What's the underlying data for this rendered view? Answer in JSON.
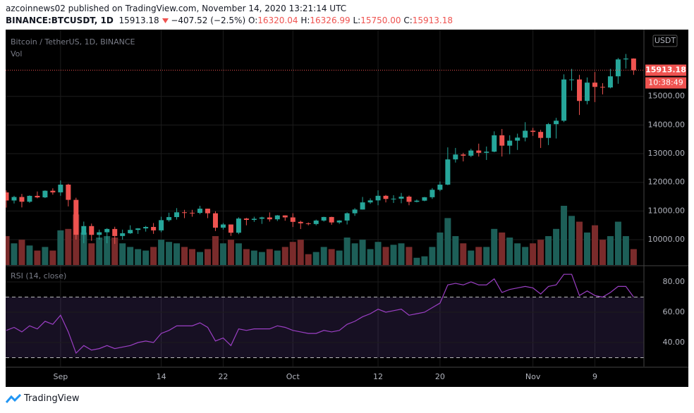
{
  "header": {
    "author_line": "azcoinnews02 published on TradingView.com, November 14, 2020 13:21:14 UTC",
    "symbol": "BINANCE:BTCUSDT, 1D",
    "last": "15913.18",
    "change": "−407.52 (−2.5%)",
    "ohlc": [
      {
        "label": "O:",
        "value": "16320.04"
      },
      {
        "label": "H:",
        "value": "16326.99"
      },
      {
        "label": "L:",
        "value": "15750.00"
      },
      {
        "label": "C:",
        "value": "15913.18"
      }
    ]
  },
  "footer": {
    "brand": "TradingView"
  },
  "chart_data": [
    {
      "type": "candlestick",
      "title": "Bitcoin / TetherUS, 1D, BINANCE",
      "volume_label": "Vol",
      "unit": "USDT",
      "last_label": "15913.18",
      "countdown": "10:38:49",
      "categories": [
        null,
        null,
        null,
        null,
        null,
        null,
        null,
        "Sep",
        null,
        null,
        null,
        null,
        null,
        null,
        null,
        null,
        null,
        null,
        null,
        null,
        "14",
        null,
        null,
        null,
        null,
        null,
        null,
        null,
        "22",
        null,
        null,
        null,
        null,
        null,
        null,
        null,
        null,
        "Oct",
        null,
        null,
        null,
        null,
        null,
        null,
        null,
        null,
        null,
        null,
        "12",
        null,
        null,
        null,
        null,
        null,
        null,
        null,
        "20",
        null,
        null,
        null,
        null,
        null,
        null,
        null,
        null,
        null,
        null,
        null,
        "Nov",
        null,
        null,
        null,
        null,
        null,
        null,
        null,
        "9",
        null,
        null,
        null,
        null,
        null
      ],
      "open": [
        11648,
        11366,
        11488,
        11323,
        11528,
        11475,
        11706,
        11650,
        11920,
        11388,
        10170,
        10473,
        10166,
        10257,
        10372,
        10126,
        10223,
        10339,
        10392,
        10443,
        10323,
        10680,
        10787,
        10954,
        10939,
        10933,
        11080,
        10920,
        10417,
        10529,
        10241,
        10736,
        10689,
        10728,
        10775,
        10709,
        10845,
        10776,
        10620,
        10570,
        10545,
        10666,
        10790,
        10600,
        10667,
        10920,
        11050,
        11300,
        11370,
        11530,
        11420,
        11430,
        11500,
        11320,
        11360,
        11480,
        11740,
        11920,
        12800,
        12970,
        12930,
        13110,
        13030,
        13070,
        13640,
        13280,
        13455,
        13560,
        13800,
        13760,
        13550,
        14030,
        14150,
        15590,
        15590,
        14840,
        15480,
        15330,
        15310,
        15700,
        16290,
        16320.04
      ],
      "high": [
        11718,
        11530,
        11595,
        11545,
        11680,
        11720,
        11790,
        12067,
        11950,
        11462,
        10630,
        10560,
        10350,
        10400,
        10450,
        10350,
        10500,
        10400,
        10480,
        10580,
        10800,
        10940,
        11100,
        11040,
        11040,
        11180,
        11080,
        10990,
        10580,
        10530,
        10780,
        10760,
        10800,
        10800,
        10950,
        10860,
        10850,
        10920,
        10660,
        10600,
        10700,
        10800,
        10800,
        10680,
        10950,
        11100,
        11490,
        11440,
        11720,
        11560,
        11550,
        11630,
        11540,
        11400,
        11490,
        11800,
        12030,
        13220,
        13200,
        13030,
        13170,
        13350,
        13250,
        13780,
        13860,
        13640,
        13700,
        14100,
        13900,
        13830,
        14070,
        14250,
        15770,
        15960,
        15750,
        15660,
        15850,
        15460,
        15960,
        16340,
        16480,
        16326.99
      ],
      "low": [
        11117,
        11262,
        11125,
        11285,
        11442,
        11450,
        11570,
        11530,
        11160,
        10000,
        9875,
        9960,
        10000,
        9875,
        9850,
        10000,
        10200,
        10200,
        10280,
        10200,
        10260,
        10630,
        10700,
        10750,
        10800,
        10890,
        10750,
        10300,
        10350,
        10130,
        10190,
        10500,
        10620,
        10550,
        10630,
        10650,
        10660,
        10440,
        10370,
        10500,
        10500,
        10630,
        10520,
        10550,
        10530,
        10830,
        11050,
        11250,
        11200,
        11300,
        11280,
        11270,
        11200,
        11300,
        11340,
        11420,
        11690,
        11900,
        12690,
        12730,
        12880,
        12900,
        12780,
        13050,
        12900,
        12980,
        13130,
        13430,
        13620,
        13200,
        13300,
        13530,
        14100,
        15200,
        14350,
        14720,
        14800,
        15070,
        15280,
        15440,
        15970,
        15750
      ],
      "close": [
        11366,
        11488,
        11323,
        11528,
        11475,
        11706,
        11650,
        11920,
        11388,
        10170,
        10473,
        10166,
        10257,
        10372,
        10126,
        10223,
        10339,
        10392,
        10443,
        10323,
        10680,
        10787,
        10954,
        10939,
        10933,
        11080,
        10920,
        10417,
        10529,
        10241,
        10736,
        10689,
        10728,
        10775,
        10709,
        10845,
        10776,
        10620,
        10570,
        10545,
        10666,
        10790,
        10600,
        10667,
        10920,
        11050,
        11300,
        11370,
        11530,
        11420,
        11430,
        11500,
        11320,
        11360,
        11480,
        11740,
        11920,
        12800,
        12970,
        12930,
        13110,
        13030,
        13070,
        13640,
        13280,
        13455,
        13560,
        13800,
        13760,
        13550,
        14030,
        14150,
        15590,
        15590,
        14840,
        15480,
        15330,
        15310,
        15700,
        16290,
        16320,
        15913.18
      ],
      "volume": [
        40,
        30,
        35,
        27,
        20,
        25,
        20,
        48,
        50,
        70,
        45,
        30,
        38,
        40,
        38,
        30,
        25,
        22,
        20,
        25,
        35,
        32,
        30,
        25,
        22,
        18,
        22,
        40,
        30,
        35,
        30,
        22,
        20,
        18,
        22,
        20,
        25,
        32,
        35,
        15,
        18,
        25,
        22,
        20,
        38,
        30,
        35,
        22,
        32,
        25,
        28,
        30,
        25,
        10,
        12,
        25,
        45,
        65,
        40,
        30,
        20,
        25,
        25,
        50,
        45,
        38,
        30,
        25,
        30,
        35,
        40,
        50,
        82,
        68,
        60,
        45,
        55,
        35,
        40,
        60,
        40,
        22
      ],
      "up_color": "#26a69a",
      "down_color": "#ef5350",
      "volume_up_color": "#1d5f58",
      "volume_down_color": "#7a2b2b",
      "ylim": [
        9115,
        17330
      ],
      "yticks": [
        {
          "value": 10000,
          "label": "10000.00"
        },
        {
          "value": 11000,
          "label": "11000.00"
        },
        {
          "value": 12000,
          "label": "12000.00"
        },
        {
          "value": 13000,
          "label": "13000.00"
        },
        {
          "value": 14000,
          "label": "14000.00"
        },
        {
          "value": 15000,
          "label": "15000.00"
        }
      ],
      "grid": true
    },
    {
      "type": "line",
      "title": "RSI (14, close)",
      "color": "#9b3fc4",
      "values": [
        48,
        50,
        47,
        51,
        49,
        54,
        52,
        58,
        47,
        33,
        38,
        35,
        36,
        38,
        36,
        37,
        38,
        40,
        41,
        40,
        46,
        48,
        51,
        51,
        51,
        53,
        50,
        41,
        43,
        38,
        49,
        48,
        49,
        49,
        49,
        51,
        50,
        48,
        47,
        46,
        46,
        48,
        47,
        48,
        52,
        54,
        57,
        59,
        62,
        60,
        61,
        62,
        58,
        59,
        60,
        63,
        66,
        78,
        79,
        78,
        80,
        78,
        78,
        82,
        73,
        75,
        76,
        77,
        76,
        72,
        77,
        78,
        85,
        85,
        71,
        74,
        71,
        70,
        73,
        77,
        77,
        70
      ],
      "ylim": [
        24.2,
        90.2
      ],
      "yticks": [
        {
          "value": 40,
          "label": "40.00"
        },
        {
          "value": 60,
          "label": "60.00"
        },
        {
          "value": 80,
          "label": "80.00"
        }
      ],
      "bands": [
        30,
        70
      ],
      "band_color": "#7e57c2",
      "grid": true
    }
  ]
}
